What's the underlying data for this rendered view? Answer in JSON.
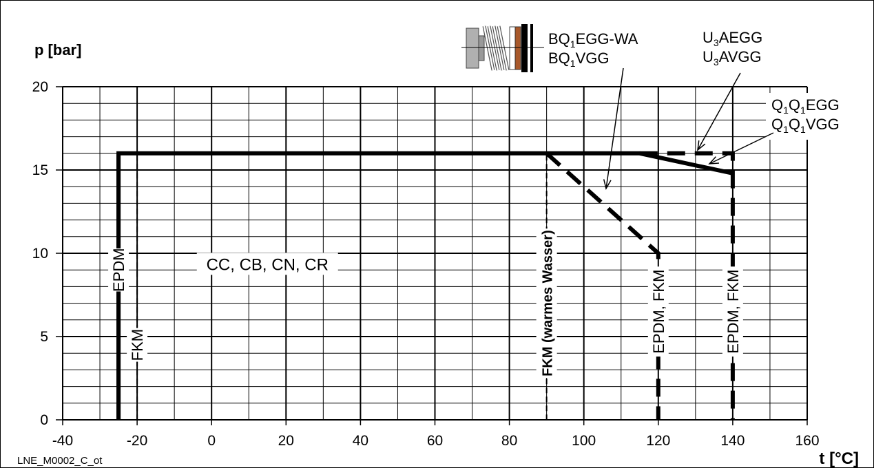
{
  "chart_data": {
    "type": "line",
    "xlabel": "t [°C]",
    "ylabel": "p [bar]",
    "xlim": [
      -40,
      160
    ],
    "ylim": [
      0,
      20
    ],
    "x_ticks": [
      -40,
      -20,
      0,
      20,
      40,
      60,
      80,
      100,
      120,
      140,
      160
    ],
    "y_ticks": [
      0,
      5,
      10,
      15,
      20
    ],
    "grid": true,
    "footer": "LNE_M0002_C_ot",
    "series": [
      {
        "name": "BQ1EGG-WA / BQ1VGG",
        "style": "solid-thick",
        "x": [
          -25,
          -25,
          90
        ],
        "y": [
          0,
          16,
          16
        ]
      },
      {
        "name": "BQ1EGG-WA / BQ1VGG",
        "style": "dashed-thick",
        "x": [
          90,
          120,
          120
        ],
        "y": [
          16,
          10,
          0
        ]
      },
      {
        "name": "U3AEGG / U3AVGG",
        "style": "dashed-thick",
        "x": [
          115,
          140,
          140
        ],
        "y": [
          16,
          16,
          0
        ]
      },
      {
        "name": "Q1Q1EGG / Q1Q1VGG",
        "style": "solid-thick",
        "x": [
          90,
          115,
          140
        ],
        "y": [
          16,
          16,
          14.8
        ]
      }
    ],
    "vertical_lines": [
      {
        "x": -25,
        "label": "EPDM",
        "style": "solid-thick",
        "label_y": 9
      },
      {
        "x": -20,
        "label": "FKM",
        "style": "dashed-thin",
        "label_y": 4.5
      },
      {
        "x": 90,
        "label": "FKM (warmes Wasser)",
        "style": "dashed-thin",
        "label_y": 7
      },
      {
        "x": 120,
        "label": "EPDM, FKM",
        "label_y": 6.5
      },
      {
        "x": 140,
        "label": "EPDM, FKM",
        "label_y": 6.5
      }
    ],
    "region_label": {
      "text": "CC, CB, CN, CR",
      "x": 15,
      "y": 9.2
    },
    "annotations": [
      {
        "lines": [
          [
            "BQ",
            "1",
            "EGG-WA"
          ],
          [
            "BQ",
            "1",
            "VGG"
          ]
        ]
      },
      {
        "lines": [
          [
            "U",
            "3",
            "AEGG"
          ],
          [
            "U",
            "3",
            "AVGG"
          ]
        ]
      },
      {
        "lines": [
          [
            "Q",
            "1",
            "Q",
            "1",
            "EGG"
          ],
          [
            "Q",
            "1",
            "Q",
            "1",
            "VGG"
          ]
        ]
      }
    ],
    "legend_icon": "seal-assembly-icon"
  }
}
